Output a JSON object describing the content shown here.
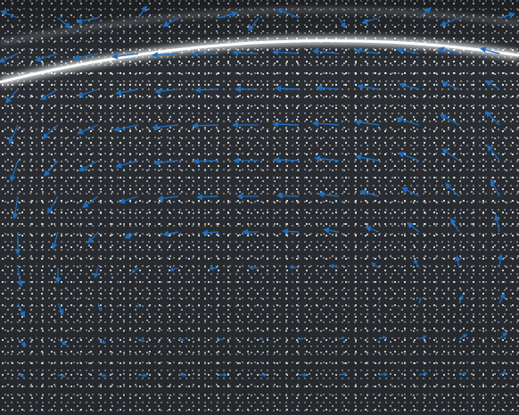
{
  "chart_data": {
    "type": "quiver",
    "color": "#1f6fc0",
    "grid": false,
    "tick_labels": false,
    "xlim": [
      0,
      582
    ],
    "ylim": [
      0,
      465
    ],
    "x": [
      20,
      65,
      110,
      155,
      200,
      245,
      290,
      335,
      380,
      425,
      470,
      515,
      560
    ],
    "y": [
      20,
      60,
      100,
      140,
      180,
      220,
      260,
      300,
      340,
      380,
      420
    ],
    "u": [
      [
        -20,
        15,
        -25,
        10,
        -18,
        22,
        -12,
        -25,
        8,
        -20,
        14,
        -22,
        18
      ],
      [
        -22,
        -26,
        -28,
        -30,
        -30,
        -30,
        -30,
        -30,
        -30,
        -28,
        -26,
        -24,
        -22
      ],
      [
        -14,
        -20,
        -24,
        -26,
        -27,
        -27,
        -27,
        -27,
        -26,
        -25,
        -23,
        -20,
        -16
      ],
      [
        -10,
        -18,
        -24,
        -28,
        -30,
        -30,
        -30,
        -30,
        -30,
        -28,
        -26,
        -22,
        -16
      ],
      [
        -8,
        -16,
        -22,
        -26,
        -28,
        -29,
        -29,
        -29,
        -28,
        -27,
        -24,
        -20,
        -14
      ],
      [
        -4,
        -12,
        -18,
        -22,
        -24,
        -25,
        -25,
        -25,
        -24,
        -22,
        -20,
        -16,
        -10
      ],
      [
        0,
        -6,
        -12,
        -16,
        -18,
        -19,
        -19,
        -19,
        -18,
        -16,
        -14,
        -10,
        -4
      ],
      [
        4,
        0,
        -4,
        -8,
        -10,
        -11,
        -11,
        -11,
        -10,
        -9,
        -6,
        -3,
        2
      ],
      [
        8,
        6,
        4,
        2,
        0,
        -1,
        -1,
        -1,
        0,
        1,
        2,
        4,
        6
      ],
      [
        10,
        10,
        9,
        8,
        7,
        6,
        6,
        6,
        7,
        8,
        9,
        9,
        9
      ],
      [
        8,
        9,
        10,
        10,
        10,
        10,
        10,
        10,
        10,
        10,
        10,
        9,
        8
      ]
    ],
    "v": [
      [
        -8,
        12,
        5,
        -14,
        10,
        -6,
        15,
        -10,
        12,
        6,
        -12,
        9,
        -5
      ],
      [
        10,
        8,
        6,
        4,
        2,
        0,
        -1,
        -2,
        -3,
        -4,
        -5,
        -6,
        -6
      ],
      [
        16,
        12,
        8,
        5,
        3,
        1,
        0,
        -1,
        -2,
        -4,
        -6,
        -8,
        -10
      ],
      [
        22,
        16,
        10,
        6,
        3,
        1,
        0,
        -1,
        -2,
        -4,
        -8,
        -12,
        -16
      ],
      [
        24,
        18,
        12,
        7,
        3,
        1,
        0,
        -1,
        -3,
        -5,
        -9,
        -14,
        -18
      ],
      [
        26,
        20,
        13,
        7,
        3,
        1,
        0,
        -1,
        -3,
        -6,
        -10,
        -15,
        -20
      ],
      [
        26,
        20,
        13,
        7,
        3,
        1,
        0,
        -1,
        -3,
        -6,
        -11,
        -16,
        -20
      ],
      [
        22,
        18,
        12,
        6,
        3,
        1,
        0,
        -1,
        -3,
        -6,
        -10,
        -14,
        -16
      ],
      [
        16,
        13,
        9,
        5,
        2,
        1,
        0,
        -1,
        -2,
        -4,
        -7,
        -10,
        -12
      ],
      [
        8,
        7,
        5,
        3,
        1,
        0,
        0,
        -1,
        -2,
        -3,
        -4,
        -6,
        -8
      ],
      [
        2,
        2,
        1,
        1,
        0,
        0,
        0,
        0,
        -1,
        -1,
        -2,
        -2,
        -3
      ]
    ]
  }
}
